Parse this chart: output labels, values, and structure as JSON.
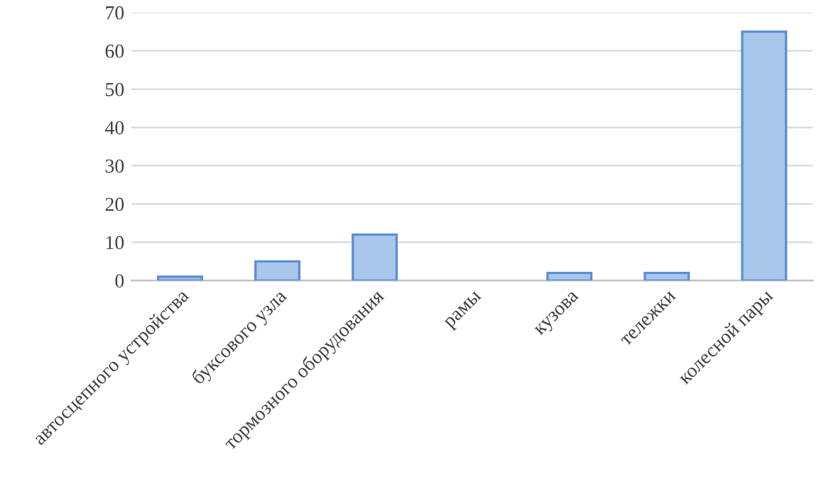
{
  "chart_data": {
    "type": "bar",
    "categories": [
      "автосцепного устройства",
      "буксового узла",
      "тормозного оборудования",
      "рамы",
      "кузова",
      "тележки",
      "колесной пары"
    ],
    "values": [
      1,
      5,
      12,
      0,
      2,
      2,
      65
    ],
    "color": "#a9c7ea",
    "ylim": [
      0,
      70
    ],
    "yticks": [
      0,
      10,
      20,
      30,
      40,
      50,
      60,
      70
    ],
    "grid": "y"
  }
}
